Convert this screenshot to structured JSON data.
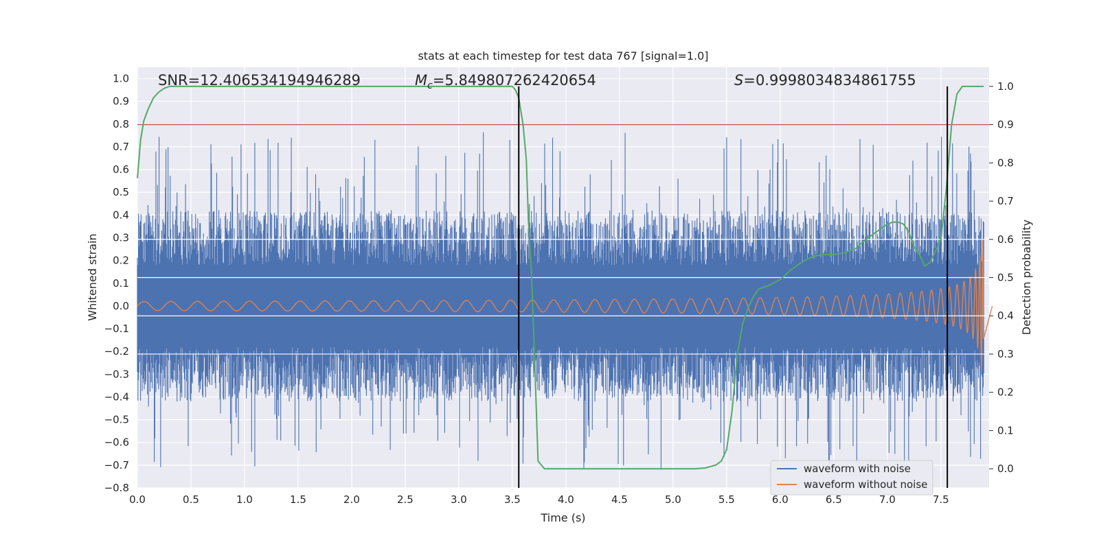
{
  "chart_data": {
    "type": "line",
    "title": "stats at each timestep for test data 767 [signal=1.0]",
    "xlabel": "Time (s)",
    "ylabel": "Whitened strain",
    "ylabel_right": "Detection probability",
    "xlim": [
      0.0,
      7.95
    ],
    "ylim": [
      -0.8,
      1.05
    ],
    "ylim_right": [
      -0.05,
      1.05
    ],
    "xticks": [
      "0.0",
      "0.5",
      "1.0",
      "1.5",
      "2.0",
      "2.5",
      "3.0",
      "3.5",
      "4.0",
      "4.5",
      "5.0",
      "5.5",
      "6.0",
      "6.5",
      "7.0",
      "7.5"
    ],
    "yticks_left": [
      "1.0",
      "0.9",
      "0.8",
      "0.7",
      "0.6",
      "0.5",
      "0.4",
      "0.3",
      "0.2",
      "0.1",
      "0.0",
      "−0.1",
      "−0.2",
      "−0.3",
      "−0.4",
      "−0.5",
      "−0.6",
      "−0.7",
      "−0.8"
    ],
    "yticks_right": [
      "1.0",
      "0.9",
      "0.8",
      "0.7",
      "0.6",
      "0.5",
      "0.4",
      "0.3",
      "0.2",
      "0.1",
      "0.0"
    ],
    "grid": true,
    "legend_position": "lower-right",
    "annotations": {
      "snr_text": "SNR=12.406534194946289",
      "mc_symbol": "M",
      "mc_subscript": "c",
      "mc_value": "=5.849807262420654",
      "s_symbol": "S",
      "s_value": "=0.9998034834861755"
    },
    "series": [
      {
        "name": "waveform with noise",
        "color": "#4c72b0",
        "kind": "noise",
        "envelope_typical": 0.3,
        "envelope_peak": 0.77
      },
      {
        "name": "waveform without noise",
        "color": "#dd8452",
        "kind": "chirp",
        "end_time": 7.9,
        "peak_amplitude": 0.3,
        "start_amplitude": 0.02
      },
      {
        "name": "detection probability",
        "color": "#55a868",
        "axis": "right",
        "x": [
          0.0,
          0.03,
          0.06,
          0.1,
          0.15,
          0.2,
          0.25,
          0.3,
          0.4,
          0.6,
          1.0,
          2.0,
          3.0,
          3.3,
          3.45,
          3.5,
          3.53,
          3.56,
          3.6,
          3.63,
          3.65,
          3.68,
          3.7,
          3.74,
          3.8,
          4.0,
          4.5,
          5.0,
          5.2,
          5.3,
          5.4,
          5.45,
          5.5,
          5.55,
          5.6,
          5.65,
          5.7,
          5.75,
          5.8,
          5.9,
          6.0,
          6.1,
          6.2,
          6.3,
          6.4,
          6.5,
          6.6,
          6.7,
          6.8,
          6.9,
          7.0,
          7.05,
          7.1,
          7.15,
          7.2,
          7.25,
          7.3,
          7.35,
          7.4,
          7.45,
          7.5,
          7.55,
          7.6,
          7.65,
          7.7,
          7.8,
          7.9
        ],
        "y": [
          0.76,
          0.86,
          0.91,
          0.94,
          0.97,
          0.985,
          0.995,
          1.0,
          1.0,
          1.0,
          1.0,
          1.0,
          1.0,
          1.0,
          1.0,
          1.0,
          0.99,
          0.97,
          0.9,
          0.81,
          0.65,
          0.5,
          0.35,
          0.02,
          0.0,
          0.0,
          0.0,
          0.0,
          0.0,
          0.002,
          0.01,
          0.02,
          0.05,
          0.15,
          0.3,
          0.38,
          0.42,
          0.45,
          0.47,
          0.48,
          0.495,
          0.52,
          0.54,
          0.555,
          0.56,
          0.56,
          0.565,
          0.575,
          0.6,
          0.62,
          0.64,
          0.645,
          0.645,
          0.64,
          0.62,
          0.58,
          0.56,
          0.53,
          0.54,
          0.57,
          0.6,
          0.73,
          0.9,
          0.98,
          1.0,
          1.0,
          1.0
        ]
      }
    ],
    "threshold": {
      "axis": "right",
      "value": 0.9,
      "color": "#c44e52"
    },
    "vlines": [
      {
        "x": 3.56,
        "y_from": -0.05,
        "y_to": 1.0,
        "axis": "right",
        "color": "#000000"
      },
      {
        "x": 7.56,
        "y_from": -0.05,
        "y_to": 1.0,
        "axis": "right",
        "color": "#000000"
      }
    ],
    "right_axis_grid": [
      0.3,
      0.4,
      0.5,
      0.6
    ]
  },
  "colors": {
    "plot_bg": "#eaeaf2",
    "grid": "#ffffff",
    "text": "#262626"
  }
}
